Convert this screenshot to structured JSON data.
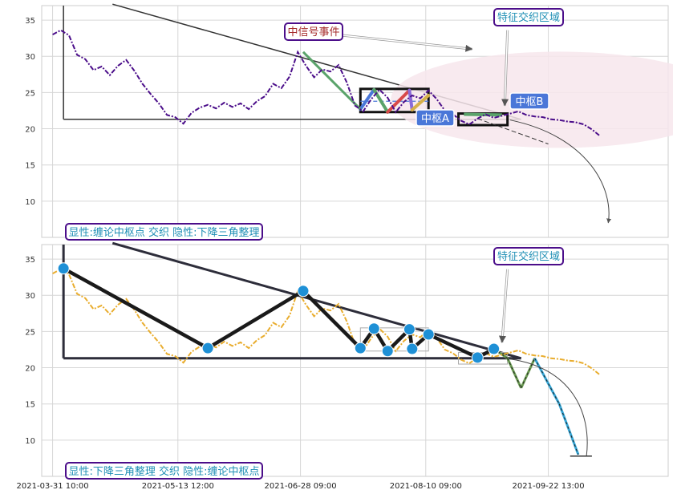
{
  "chart_data": [
    {
      "type": "line",
      "panel": "top",
      "title": "",
      "xlabel": "",
      "ylabel": "",
      "ylim": [
        5,
        37
      ],
      "xlim": [
        -4,
        226
      ],
      "y_ticks": [
        10,
        15,
        20,
        25,
        30,
        35
      ],
      "grid": true,
      "series": [
        {
          "name": "",
          "style": "dash-dot",
          "color": "#4b0e8a",
          "x": [
            0,
            3,
            6,
            9,
            12,
            15,
            18,
            21,
            24,
            27,
            30,
            33,
            36,
            39,
            42,
            45,
            48,
            51,
            54,
            57,
            60,
            63,
            66,
            69,
            72,
            75,
            78,
            81,
            84,
            87,
            90,
            93,
            96,
            99,
            102,
            105,
            108,
            111,
            114,
            117,
            120,
            123,
            126,
            129,
            132,
            135,
            138,
            141,
            144,
            147,
            150,
            153,
            156,
            159,
            162,
            165,
            168,
            171,
            174,
            177,
            180,
            183,
            186,
            189,
            192,
            195,
            198,
            201
          ],
          "values": [
            33.0,
            33.6,
            32.9,
            30.2,
            29.6,
            28.1,
            28.6,
            27.4,
            28.7,
            29.5,
            28.0,
            26.2,
            24.8,
            23.5,
            21.9,
            21.6,
            20.7,
            22.2,
            22.9,
            23.3,
            22.8,
            23.6,
            23.0,
            23.5,
            22.7,
            23.8,
            24.5,
            26.2,
            25.6,
            27.2,
            30.6,
            28.7,
            27.1,
            28.2,
            27.9,
            28.8,
            26.4,
            23.2,
            22.4,
            24.1,
            25.4,
            24.3,
            22.3,
            23.7,
            24.6,
            24.2,
            25.3,
            24.1,
            22.5,
            22.0,
            21.1,
            20.6,
            21.4,
            22.0,
            21.5,
            21.8,
            22.1,
            22.4,
            21.9,
            21.7,
            21.6,
            21.3,
            21.2,
            21.0,
            20.9,
            20.6,
            19.9,
            19.0
          ]
        }
      ],
      "annotations": [
        {
          "kind": "label",
          "text": "中信号事件",
          "x": 91,
          "y": 33.4
        },
        {
          "kind": "label",
          "text": "特征交织区域",
          "x": 180,
          "y": 35.4
        },
        {
          "kind": "label",
          "text": "中枢A",
          "x": 139.5,
          "y": 21.7
        },
        {
          "kind": "label",
          "text": "中枢B",
          "x": 176,
          "y": 23.9
        }
      ],
      "x_tick_labels": [
        "2021-03-31 10:00",
        "2021-05-13 12:00",
        "2021-06-28 09:00",
        "2021-08-10 09:00",
        "2021-09-22 13:00"
      ],
      "x_ticks": [
        0,
        46,
        91,
        137,
        182
      ],
      "caption": ""
    },
    {
      "type": "line",
      "panel": "bottom",
      "title": "",
      "xlabel": "",
      "ylabel": "",
      "ylim": [
        5,
        37
      ],
      "xlim": [
        -4,
        226
      ],
      "y_ticks": [
        10,
        15,
        20,
        25,
        30,
        35
      ],
      "grid": true,
      "series": [
        {
          "name": "",
          "style": "dash-dot",
          "color": "#e9ad2e",
          "x": [
            0,
            3,
            6,
            9,
            12,
            15,
            18,
            21,
            24,
            27,
            30,
            33,
            36,
            39,
            42,
            45,
            48,
            51,
            54,
            57,
            60,
            63,
            66,
            69,
            72,
            75,
            78,
            81,
            84,
            87,
            90,
            93,
            96,
            99,
            102,
            105,
            108,
            111,
            114,
            117,
            120,
            123,
            126,
            129,
            132,
            135,
            138,
            141,
            144,
            147,
            150,
            153,
            156,
            159,
            162,
            165,
            168,
            171,
            174,
            177,
            180,
            183,
            186,
            189,
            192,
            195,
            198,
            201
          ],
          "values": [
            33.0,
            33.6,
            32.9,
            30.2,
            29.6,
            28.1,
            28.6,
            27.4,
            28.7,
            29.5,
            28.0,
            26.2,
            24.8,
            23.5,
            21.9,
            21.6,
            20.7,
            22.2,
            22.9,
            23.3,
            22.8,
            23.6,
            23.0,
            23.5,
            22.7,
            23.8,
            24.5,
            26.2,
            25.6,
            27.2,
            30.6,
            28.7,
            27.1,
            28.2,
            27.9,
            28.8,
            26.4,
            23.2,
            22.4,
            24.1,
            25.4,
            24.3,
            22.3,
            23.7,
            24.6,
            24.2,
            25.3,
            24.1,
            22.5,
            22.0,
            21.1,
            20.6,
            21.4,
            22.0,
            21.5,
            21.8,
            22.1,
            22.4,
            21.9,
            21.7,
            21.6,
            21.3,
            21.2,
            21.0,
            20.9,
            20.6,
            19.9,
            19.0
          ]
        },
        {
          "name": "",
          "style": "zigzag",
          "color": "#1a1a1a",
          "x": [
            4,
            57,
            92,
            113,
            118,
            123,
            131,
            132,
            138,
            156,
            162
          ],
          "values": [
            33.7,
            22.7,
            30.6,
            22.7,
            25.4,
            22.3,
            25.3,
            22.6,
            24.6,
            21.4,
            22.6
          ]
        }
      ],
      "pivots": [
        {
          "x": 4,
          "y": 33.7
        },
        {
          "x": 57,
          "y": 22.7
        },
        {
          "x": 92,
          "y": 30.6
        },
        {
          "x": 113,
          "y": 22.7
        },
        {
          "x": 118,
          "y": 25.4
        },
        {
          "x": 123,
          "y": 22.3
        },
        {
          "x": 131,
          "y": 25.3
        },
        {
          "x": 132,
          "y": 22.6
        },
        {
          "x": 138,
          "y": 24.6
        },
        {
          "x": 156,
          "y": 21.4
        },
        {
          "x": 162,
          "y": 22.6
        }
      ],
      "annotations": [
        {
          "kind": "label",
          "text": "特征交织区域",
          "x": 180,
          "y": 35.4
        }
      ],
      "x_tick_labels": [
        "2021-03-31 10:00",
        "2021-05-13 12:00",
        "2021-06-28 09:00",
        "2021-08-10 09:00",
        "2021-09-22 13:00"
      ],
      "x_ticks": [
        0,
        46,
        91,
        137,
        182
      ],
      "caption": ""
    }
  ],
  "labels": {
    "top_signal": "中信号事件",
    "top_region": "特征交织区域",
    "top_pivot_a": "中枢A",
    "top_pivot_b": "中枢B",
    "top_caption": "显性:缠论中枢点 交织 隐性:下降三角整理",
    "bottom_region": "特征交织区域",
    "bottom_caption": "显性:下降三角整理 交织 隐性:缠论中枢点"
  },
  "colors": {
    "purple_line": "#4b0e8a",
    "orange_line": "#e9ad2e",
    "label_border": "#4b0e8a",
    "label_text_red": "#a52a2a",
    "label_text_teal": "#1f8fb5",
    "pivot_fill": "#4a77d8",
    "pivot_marker": "#1e90d6",
    "ellipse": "#f7e6ec"
  }
}
